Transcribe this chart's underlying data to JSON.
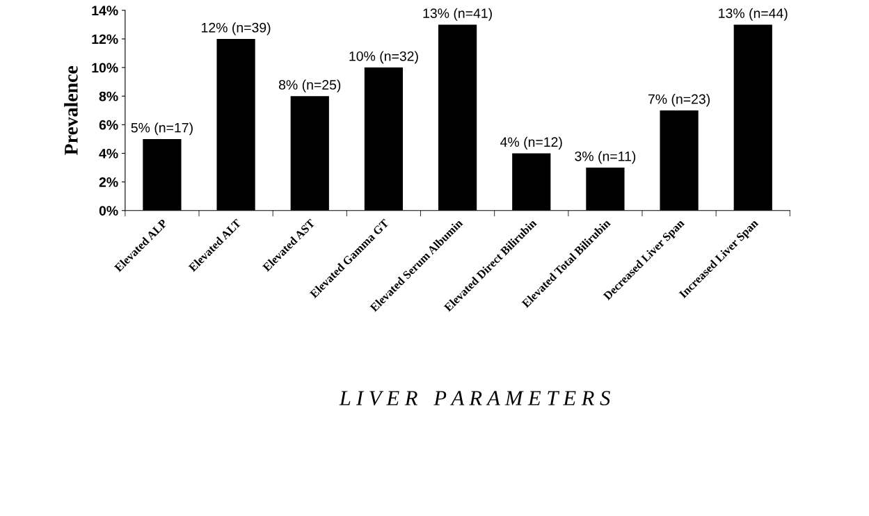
{
  "chart_data": {
    "type": "bar",
    "xlabel": "L I V E R   P A R A M E T E R S",
    "ylabel": "Prevalence",
    "categories": [
      "Elevated ALP",
      "Elevated ALT",
      "Elevated AST",
      "Elevated Gamma GT",
      "Elevated Serum Albumin",
      "Elevated Direct Bilirubin",
      "Elevated Total Bilirubin",
      "Decreased Liver Span",
      "Increased Liver Span"
    ],
    "values": [
      5,
      12,
      8,
      10,
      13,
      4,
      3,
      7,
      13
    ],
    "value_labels": [
      "5% (n=17)",
      "12% (n=39)",
      "8% (n=25)",
      "10% (n=32)",
      "13% (n=41)",
      "4% (n=12)",
      "3% (n=11)",
      "7% (n=23)",
      "13% (n=44)"
    ],
    "color": "#000000",
    "ylim": [
      0,
      14
    ],
    "yticks": [
      {
        "value": 0,
        "label": "0%"
      },
      {
        "value": 2,
        "label": "2%"
      },
      {
        "value": 4,
        "label": "4%"
      },
      {
        "value": 6,
        "label": "6%"
      },
      {
        "value": 8,
        "label": "8%"
      },
      {
        "value": 10,
        "label": "10%"
      },
      {
        "value": 12,
        "label": "12%"
      },
      {
        "value": 14,
        "label": "14%"
      }
    ],
    "grid": false,
    "legend": false
  }
}
